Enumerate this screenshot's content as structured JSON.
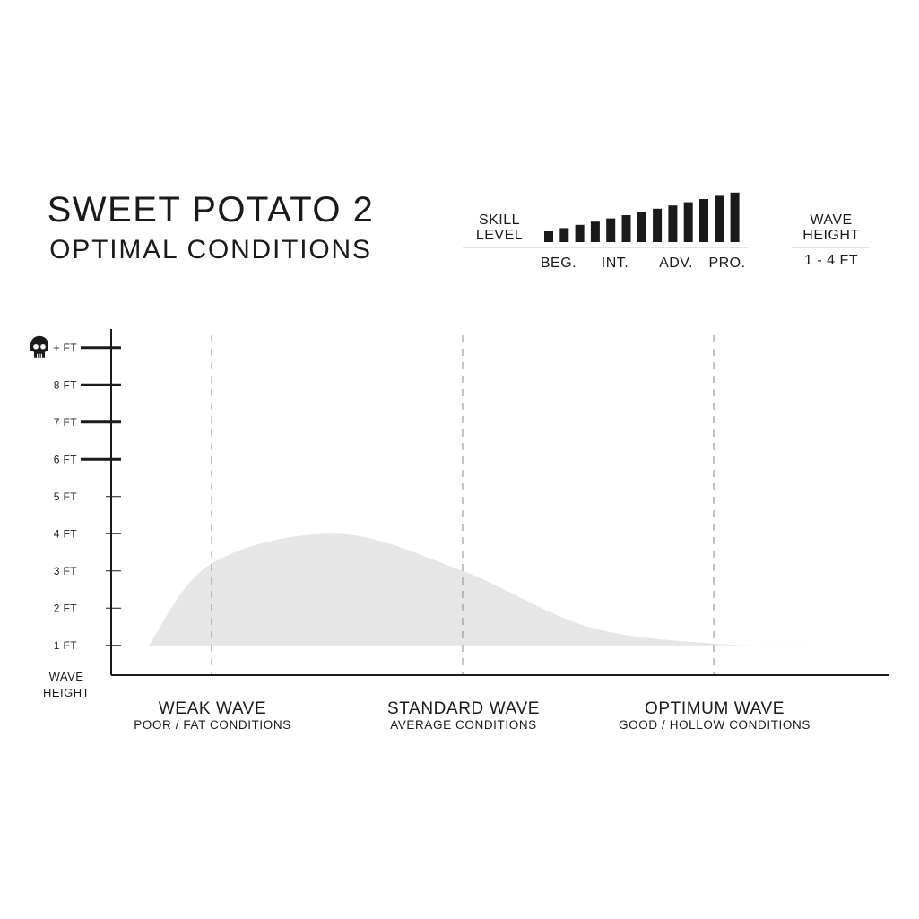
{
  "header": {
    "title": "SWEET POTATO 2",
    "subtitle": "OPTIMAL CONDITIONS"
  },
  "skill": {
    "label_line1": "SKILL",
    "label_line2": "LEVEL",
    "bar_count": 13,
    "levels": [
      "BEG.",
      "INT.",
      "ADV.",
      "PRO."
    ]
  },
  "wave_height_box": {
    "label_line1": "WAVE",
    "label_line2": "HEIGHT",
    "value": "1 - 4 FT"
  },
  "chart_data": {
    "type": "area",
    "ylabel_line1": "WAVE",
    "ylabel_line2": "HEIGHT",
    "y_ticks": [
      {
        "value": 1,
        "label": "1 FT",
        "bold": false
      },
      {
        "value": 2,
        "label": "2 FT",
        "bold": false
      },
      {
        "value": 3,
        "label": "3 FT",
        "bold": false
      },
      {
        "value": 4,
        "label": "4 FT",
        "bold": false
      },
      {
        "value": 5,
        "label": "5 FT",
        "bold": false
      },
      {
        "value": 6,
        "label": "6 FT",
        "bold": true
      },
      {
        "value": 7,
        "label": "7 FT",
        "bold": true
      },
      {
        "value": 8,
        "label": "8 FT",
        "bold": true
      },
      {
        "value": 9,
        "label": "+ FT",
        "bold": true,
        "icon": "skull-icon"
      }
    ],
    "ylim": [
      0.2,
      9.5
    ],
    "xlim": [
      0,
      3.1
    ],
    "categories": [
      {
        "title": "WEAK WAVE",
        "subtitle": "POOR / FAT CONDITIONS",
        "x": 0.4
      },
      {
        "title": "STANDARD WAVE",
        "subtitle": "AVERAGE CONDITIONS",
        "x": 1.4
      },
      {
        "title": "OPTIMUM WAVE",
        "subtitle": "GOOD / HOLLOW CONDITIONS",
        "x": 2.4
      }
    ],
    "series": [
      {
        "x": [
          0.15,
          0.4,
          0.9,
          1.4,
          1.9,
          2.4,
          2.85
        ],
        "y": [
          1.0,
          3.2,
          4.0,
          3.0,
          1.5,
          1.05,
          1.0
        ],
        "baseline": 1.0,
        "color": "#e6e6e6"
      }
    ]
  }
}
